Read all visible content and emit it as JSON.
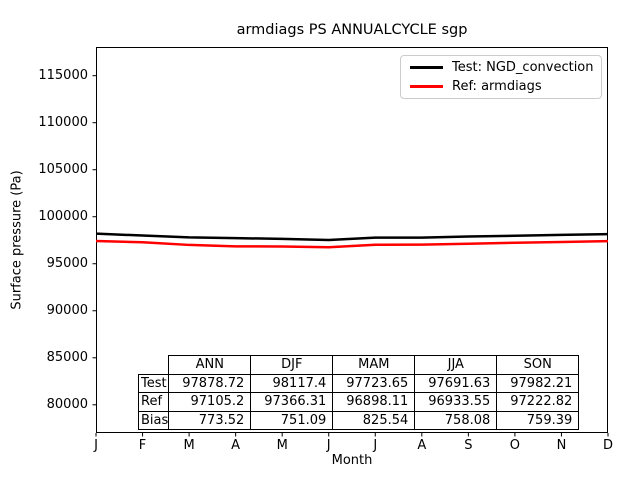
{
  "title": "armdiags PS ANNUALCYCLE sgp",
  "chart_data": {
    "type": "line",
    "x_tick_labels": [
      "J",
      "F",
      "M",
      "A",
      "M",
      "J",
      "J",
      "A",
      "S",
      "O",
      "N",
      "D"
    ],
    "xlabel": "Month",
    "ylabel": "Surface pressure (Pa)",
    "ylim": [
      77000,
      118050
    ],
    "yticks": [
      80000,
      85000,
      90000,
      95000,
      100000,
      105000,
      110000,
      115000
    ],
    "grid": false,
    "legend_position": "upper right",
    "series": [
      {
        "name": "Test: NGD_convection",
        "color": "#000000",
        "values": [
          98200,
          98000,
          97800,
          97720,
          97650,
          97520,
          97780,
          97780,
          97900,
          97980,
          98070,
          98150
        ]
      },
      {
        "name": "Ref: armdiags",
        "color": "#ff0000",
        "values": [
          97420,
          97280,
          97000,
          96850,
          96840,
          96750,
          97020,
          97030,
          97130,
          97230,
          97310,
          97400
        ]
      }
    ]
  },
  "stats_table": {
    "columns": [
      "ANN",
      "DJF",
      "MAM",
      "JJA",
      "SON"
    ],
    "rows": [
      {
        "label": "Test",
        "values": [
          "97878.72",
          "98117.4",
          "97723.65",
          "97691.63",
          "97982.21"
        ]
      },
      {
        "label": "Ref",
        "values": [
          "97105.2",
          "97366.31",
          "96898.11",
          "96933.55",
          "97222.82"
        ]
      },
      {
        "label": "Bias",
        "values": [
          "773.52",
          "751.09",
          "825.54",
          "758.08",
          "759.39"
        ]
      }
    ]
  },
  "colors": {
    "axes_border": "#000000",
    "legend_border": "#cccccc",
    "test_line": "#000000",
    "ref_line": "#ff0000"
  }
}
